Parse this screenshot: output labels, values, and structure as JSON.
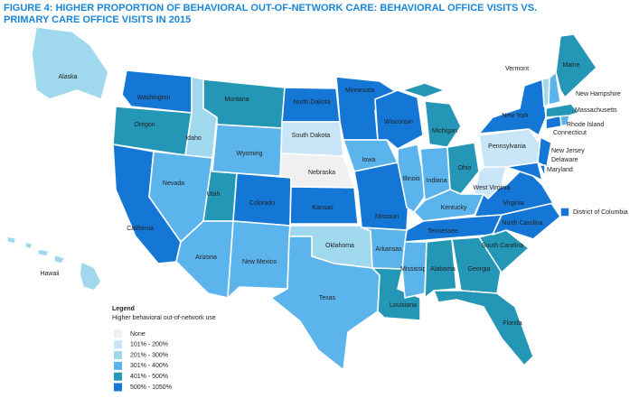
{
  "title": "FIGURE 4: HIGHER PROPORTION OF BEHAVIORAL OUT-OF-NETWORK CARE: BEHAVIORAL OFFICE VISITS VS. PRIMARY CARE OFFICE VISITS IN 2015",
  "legend": {
    "title": "Legend",
    "subtitle": "Higher behavioral out-of-network use",
    "items": [
      {
        "label": "None",
        "color": "#f0f0f0"
      },
      {
        "label": "101% - 200%",
        "color": "#c8e6f7"
      },
      {
        "label": "201% - 300%",
        "color": "#a0d8ee"
      },
      {
        "label": "301% - 400%",
        "color": "#5cb4ec"
      },
      {
        "label": "401% - 500%",
        "color": "#2496b6"
      },
      {
        "label": "500% - 1050%",
        "color": "#1477d6"
      }
    ]
  },
  "states": [
    {
      "name": "Washington",
      "level": 5
    },
    {
      "name": "Oregon",
      "level": 4
    },
    {
      "name": "California",
      "level": 5
    },
    {
      "name": "Idaho",
      "level": 2
    },
    {
      "name": "Nevada",
      "level": 3
    },
    {
      "name": "Montana",
      "level": 4
    },
    {
      "name": "Wyoming",
      "level": 3
    },
    {
      "name": "Utah",
      "level": 4
    },
    {
      "name": "Colorado",
      "level": 5
    },
    {
      "name": "Arizona",
      "level": 3
    },
    {
      "name": "New Mexico",
      "level": 3
    },
    {
      "name": "North Dakota",
      "level": 5
    },
    {
      "name": "South Dakota",
      "level": 1
    },
    {
      "name": "Nebraska",
      "level": 0
    },
    {
      "name": "Kansas",
      "level": 5
    },
    {
      "name": "Oklahoma",
      "level": 2
    },
    {
      "name": "Texas",
      "level": 3
    },
    {
      "name": "Minnesota",
      "level": 5
    },
    {
      "name": "Iowa",
      "level": 3
    },
    {
      "name": "Missouri",
      "level": 5
    },
    {
      "name": "Arkansas",
      "level": 3
    },
    {
      "name": "Louisiana",
      "level": 4
    },
    {
      "name": "Wisconsin",
      "level": 5
    },
    {
      "name": "Illinois",
      "level": 3
    },
    {
      "name": "Michigan",
      "level": 4
    },
    {
      "name": "Indiana",
      "level": 3
    },
    {
      "name": "Ohio",
      "level": 4
    },
    {
      "name": "Kentucky",
      "level": 3
    },
    {
      "name": "Tennessee",
      "level": 5
    },
    {
      "name": "Mississippi",
      "level": 3
    },
    {
      "name": "Alabama",
      "level": 4
    },
    {
      "name": "Georgia",
      "level": 4
    },
    {
      "name": "Florida",
      "level": 4
    },
    {
      "name": "South Carolina",
      "level": 4
    },
    {
      "name": "North Carolina",
      "level": 5
    },
    {
      "name": "Virginia",
      "level": 5
    },
    {
      "name": "West Virginia",
      "level": 1
    },
    {
      "name": "Pennsylvania",
      "level": 1
    },
    {
      "name": "New York",
      "level": 5
    },
    {
      "name": "New Jersey",
      "level": 5
    },
    {
      "name": "Delaware",
      "level": 5
    },
    {
      "name": "Maryland",
      "level": 5
    },
    {
      "name": "Connecticut",
      "level": 5
    },
    {
      "name": "Rhode Island",
      "level": 3
    },
    {
      "name": "Massachusetts",
      "level": 4
    },
    {
      "name": "Vermont",
      "level": 2
    },
    {
      "name": "New Hampshire",
      "level": 3
    },
    {
      "name": "Maine",
      "level": 4
    },
    {
      "name": "Alaska",
      "level": 2
    },
    {
      "name": "Hawaii",
      "level": 2
    },
    {
      "name": "District of Columbia",
      "level": 5
    }
  ]
}
